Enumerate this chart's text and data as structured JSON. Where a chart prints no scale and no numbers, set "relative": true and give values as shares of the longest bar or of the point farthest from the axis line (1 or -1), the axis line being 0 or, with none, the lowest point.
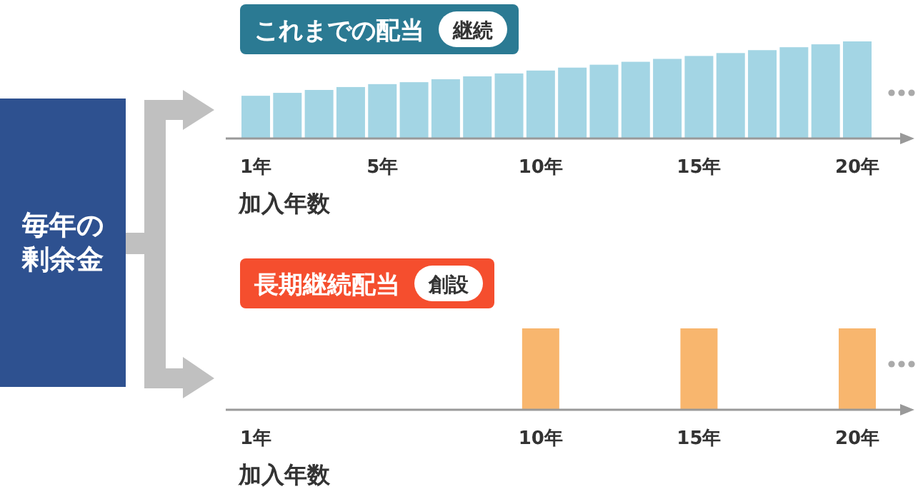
{
  "chart_data": [
    {
      "type": "other",
      "title": "毎年の剰余金"
    },
    {
      "type": "bar",
      "title": "これまでの配当",
      "subtitle": "継続",
      "xlabel": "加入年数",
      "relative": true,
      "color": "#a3d5e4",
      "categories": [
        "1年",
        null,
        null,
        null,
        "5年",
        null,
        null,
        null,
        null,
        "10年",
        null,
        null,
        null,
        null,
        "15年",
        null,
        null,
        null,
        null,
        "20年"
      ],
      "values": [
        0.44,
        0.47,
        0.5,
        0.53,
        0.56,
        0.58,
        0.61,
        0.64,
        0.67,
        0.7,
        0.73,
        0.76,
        0.79,
        0.82,
        0.85,
        0.88,
        0.91,
        0.94,
        0.97,
        1
      ]
    },
    {
      "type": "bar",
      "title": "長期継続配当",
      "subtitle": "創設",
      "xlabel": "加入年数",
      "relative": true,
      "color": "#f8b66e",
      "categories": [
        "1年",
        null,
        null,
        null,
        null,
        null,
        null,
        null,
        null,
        "10年",
        null,
        null,
        null,
        null,
        "15年",
        null,
        null,
        null,
        null,
        "20年"
      ],
      "values": [
        null,
        null,
        null,
        null,
        null,
        null,
        null,
        null,
        null,
        1,
        null,
        null,
        null,
        null,
        1,
        null,
        null,
        null,
        null,
        1
      ]
    }
  ]
}
